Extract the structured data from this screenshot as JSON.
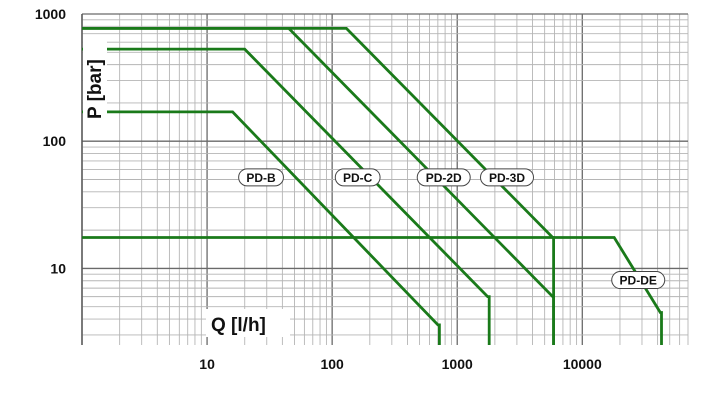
{
  "chart_data": {
    "type": "line",
    "xlabel": "Q [l/h]",
    "ylabel": "P [bar]",
    "x_scale": "log",
    "y_scale": "log",
    "xlim": [
      1,
      70000
    ],
    "ylim": [
      2.5,
      1000
    ],
    "x_ticks": [
      {
        "value": 10,
        "label": "10"
      },
      {
        "value": 100,
        "label": "100"
      },
      {
        "value": 1000,
        "label": "1000"
      },
      {
        "value": 10000,
        "label": "10000"
      }
    ],
    "y_ticks": [
      {
        "value": 10,
        "label": "10"
      },
      {
        "value": 100,
        "label": "100"
      },
      {
        "value": 1000,
        "label": "1000"
      }
    ],
    "grid": true,
    "line_color": "#1a7a1a",
    "series": [
      {
        "name": "PD-B",
        "points": [
          [
            1,
            170
          ],
          [
            16,
            170
          ],
          [
            700,
            3.6
          ],
          [
            720,
            3.6
          ],
          [
            720,
            2.5
          ]
        ]
      },
      {
        "name": "PD-C",
        "points": [
          [
            1,
            530
          ],
          [
            20,
            530
          ],
          [
            1750,
            6.0
          ],
          [
            1800,
            6.0
          ],
          [
            1800,
            2.5
          ]
        ]
      },
      {
        "name": "PD-2D",
        "points": [
          [
            1,
            770
          ],
          [
            45,
            770
          ],
          [
            5800,
            6.0
          ],
          [
            5900,
            6.0
          ],
          [
            5900,
            2.5
          ]
        ]
      },
      {
        "name": "PD-3D",
        "points": [
          [
            1,
            770
          ],
          [
            130,
            770
          ],
          [
            5800,
            17.5
          ],
          [
            5900,
            17.5
          ],
          [
            5900,
            2.5
          ]
        ]
      },
      {
        "name": "PD-DE",
        "points": [
          [
            1,
            17.5
          ],
          [
            18000,
            17.5
          ],
          [
            42000,
            4.5
          ],
          [
            43000,
            4.5
          ],
          [
            43000,
            2.5
          ]
        ]
      }
    ],
    "labels": [
      {
        "text": "PD-B",
        "x": 27,
        "y": 52
      },
      {
        "text": "PD-C",
        "x": 160,
        "y": 52
      },
      {
        "text": "PD-2D",
        "x": 780,
        "y": 52
      },
      {
        "text": "PD-3D",
        "x": 2500,
        "y": 52
      },
      {
        "text": "PD-DE",
        "x": 28000,
        "y": 8.1
      }
    ]
  }
}
